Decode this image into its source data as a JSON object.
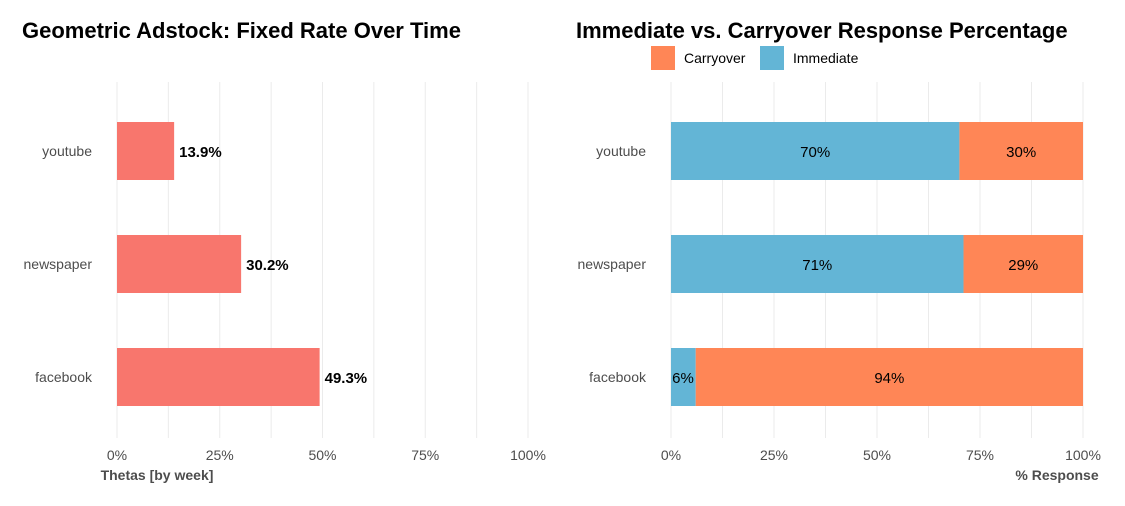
{
  "chart_data": [
    {
      "type": "bar",
      "orientation": "horizontal",
      "title": "Geometric Adstock: Fixed Rate Over Time",
      "xlabel": "Thetas [by week]",
      "ylabel": "",
      "categories": [
        "youtube",
        "newspaper",
        "facebook"
      ],
      "values": [
        0.139,
        0.302,
        0.493
      ],
      "data_labels": [
        "13.9%",
        "30.2%",
        "49.3%"
      ],
      "xlim": [
        0,
        1
      ],
      "x_ticks": [
        "0%",
        "25%",
        "50%",
        "75%",
        "100%"
      ],
      "bar_color": "#F8766D",
      "grid": true
    },
    {
      "type": "bar",
      "orientation": "horizontal",
      "stacked": true,
      "title": "Immediate vs. Carryover Response Percentage",
      "xlabel": "% Response",
      "ylabel": "",
      "categories": [
        "youtube",
        "newspaper",
        "facebook"
      ],
      "series": [
        {
          "name": "Immediate",
          "values": [
            0.7,
            0.71,
            0.06
          ],
          "labels": [
            "70%",
            "71%",
            "6%"
          ],
          "color": "#63B5D6"
        },
        {
          "name": "Carryover",
          "values": [
            0.3,
            0.29,
            0.94
          ],
          "labels": [
            "30%",
            "29%",
            "94%"
          ],
          "color": "#FF8656"
        }
      ],
      "legend_order": [
        "Carryover",
        "Immediate"
      ],
      "legend_position": "top",
      "xlim": [
        0,
        1
      ],
      "x_ticks": [
        "0%",
        "25%",
        "50%",
        "75%",
        "100%"
      ],
      "grid": true
    }
  ]
}
